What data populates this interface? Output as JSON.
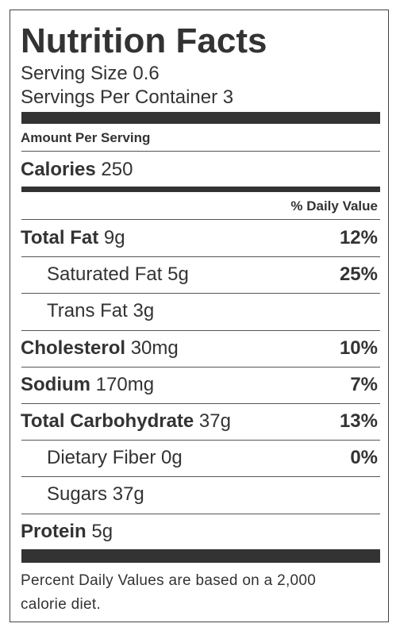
{
  "title": "Nutrition Facts",
  "serving_size": {
    "label": "Serving Size",
    "value": "0.6"
  },
  "servings_per_container": {
    "label": "Servings Per Container",
    "value": "3"
  },
  "amount_per_serving": "Amount Per Serving",
  "calories": {
    "label": "Calories",
    "value": "250"
  },
  "daily_value_header": "% Daily Value",
  "nutrients": [
    {
      "name": "Total Fat",
      "amount": "9g",
      "daily_value": "12%",
      "sub": [
        {
          "name": "Saturated Fat",
          "amount": "5g",
          "daily_value": "25%"
        },
        {
          "name": "Trans Fat",
          "amount": "3g"
        }
      ]
    },
    {
      "name": "Cholesterol",
      "amount": "30mg",
      "daily_value": "10%"
    },
    {
      "name": "Sodium",
      "amount": "170mg",
      "daily_value": "7%"
    },
    {
      "name": "Total Carbohydrate",
      "amount": "37g",
      "daily_value": "13%",
      "sub": [
        {
          "name": "Dietary Fiber",
          "amount": "0g",
          "daily_value": "0%"
        },
        {
          "name": "Sugars",
          "amount": "37g"
        }
      ]
    },
    {
      "name": "Protein",
      "amount": "5g"
    }
  ],
  "footnote": "Percent Daily Values are based on a 2,000 calorie diet."
}
